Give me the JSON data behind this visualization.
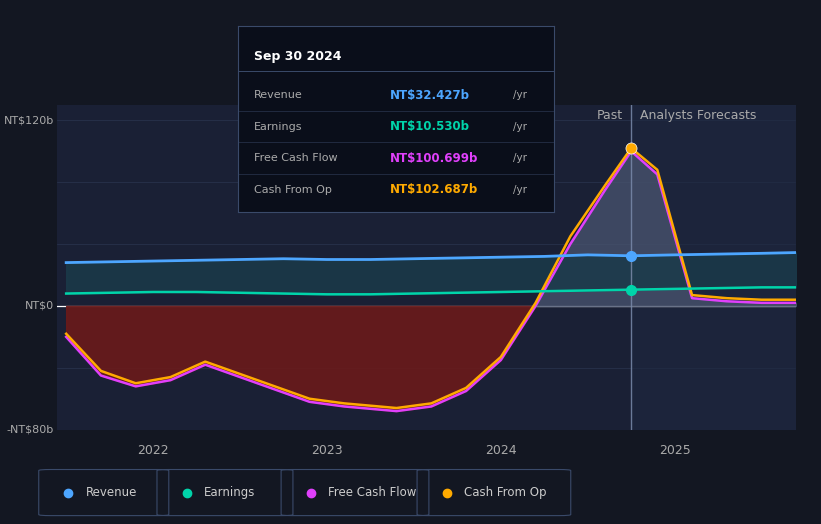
{
  "bg_color": "#131722",
  "panel_bg": "#1a2035",
  "colors": {
    "revenue": "#4da6ff",
    "earnings": "#00d4aa",
    "fcf": "#e040fb",
    "cfop": "#ffaa00",
    "divider": "#7a8aaa",
    "zero_line": "#ffffff",
    "grid": "#2a3550"
  },
  "tooltip": {
    "date": "Sep 30 2024",
    "revenue_label": "Revenue",
    "revenue_value": "NT$32.427b",
    "earnings_label": "Earnings",
    "earnings_value": "NT$10.530b",
    "fcf_label": "Free Cash Flow",
    "fcf_value": "NT$100.699b",
    "cfop_label": "Cash From Op",
    "cfop_value": "NT$102.687b"
  },
  "ylim": [
    -80,
    130
  ],
  "yticks": [
    -80,
    0,
    120
  ],
  "ytick_labels": [
    "-NT$80b",
    "NT$0",
    "NT$120b"
  ],
  "xlim_start": 2021.45,
  "xlim_end": 2025.7,
  "divider_x": 2024.75,
  "past_label": "Past",
  "forecast_label": "Analysts Forecasts",
  "legend_items": [
    {
      "label": "Revenue",
      "color": "#4da6ff"
    },
    {
      "label": "Earnings",
      "color": "#00d4aa"
    },
    {
      "label": "Free Cash Flow",
      "color": "#e040fb"
    },
    {
      "label": "Cash From Op",
      "color": "#ffaa00"
    }
  ],
  "t_rev": [
    2021.5,
    2021.75,
    2022.0,
    2022.25,
    2022.5,
    2022.75,
    2023.0,
    2023.25,
    2023.5,
    2023.75,
    2024.0,
    2024.25,
    2024.5,
    2024.75,
    2025.0,
    2025.25,
    2025.5,
    2025.7
  ],
  "rev": [
    28,
    28.5,
    29,
    29.5,
    30,
    30.5,
    30,
    30,
    30.5,
    31,
    31.5,
    32,
    33,
    32.4,
    33,
    33.5,
    34,
    34.5
  ],
  "t_earn": [
    2021.5,
    2021.75,
    2022.0,
    2022.25,
    2022.5,
    2022.75,
    2023.0,
    2023.25,
    2023.5,
    2023.75,
    2024.0,
    2024.25,
    2024.5,
    2024.75,
    2025.0,
    2025.25,
    2025.5,
    2025.7
  ],
  "earn": [
    8,
    8.5,
    9,
    9,
    8.5,
    8,
    7.5,
    7.5,
    8,
    8.5,
    9,
    9.5,
    10,
    10.5,
    11,
    11.5,
    12,
    12
  ],
  "t_fcf": [
    2021.5,
    2021.7,
    2021.9,
    2022.1,
    2022.3,
    2022.6,
    2022.9,
    2023.1,
    2023.4,
    2023.6,
    2023.8,
    2024.0,
    2024.2,
    2024.4,
    2024.6,
    2024.75,
    2024.9,
    2025.1,
    2025.3,
    2025.5,
    2025.7
  ],
  "fcf": [
    -20,
    -45,
    -52,
    -48,
    -38,
    -50,
    -62,
    -65,
    -68,
    -65,
    -55,
    -35,
    0,
    40,
    75,
    100,
    85,
    5,
    3,
    2,
    2
  ],
  "t_cfop": [
    2021.5,
    2021.7,
    2021.9,
    2022.1,
    2022.3,
    2022.6,
    2022.9,
    2023.1,
    2023.4,
    2023.6,
    2023.8,
    2024.0,
    2024.2,
    2024.4,
    2024.6,
    2024.75,
    2024.9,
    2025.1,
    2025.3,
    2025.5,
    2025.7
  ],
  "cfop": [
    -18,
    -42,
    -50,
    -46,
    -36,
    -48,
    -60,
    -63,
    -66,
    -63,
    -53,
    -33,
    2,
    45,
    78,
    102,
    88,
    7,
    5,
    4,
    4
  ]
}
